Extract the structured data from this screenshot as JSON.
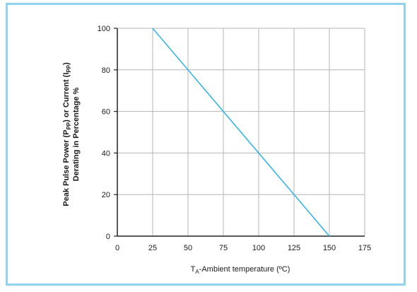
{
  "chart_data": {
    "type": "line",
    "xlabel": "TA-Ambient temperature (ºC)",
    "xlabel_parts": {
      "main": "T",
      "sub": "A",
      "rest": "-Ambient temperature (ºC)"
    },
    "ylabel_line1_parts": {
      "a": "Peak Pulse Power (P",
      "a_sub": "PP",
      "b": ") or Current (I",
      "b_sub": "PP",
      "c": ")"
    },
    "ylabel_line2": "Derating in Percentage %",
    "xlim": [
      0,
      175
    ],
    "ylim": [
      0,
      100
    ],
    "x_ticks": [
      0,
      25,
      50,
      75,
      100,
      125,
      150,
      175
    ],
    "y_ticks": [
      0,
      20,
      40,
      60,
      80,
      100
    ],
    "x_tick_labels": [
      "0",
      "25",
      "50",
      "75",
      "100",
      "125",
      "150",
      "175"
    ],
    "y_tick_labels": [
      "0",
      "20",
      "40",
      "60",
      "80",
      "100"
    ],
    "grid": true,
    "series": [
      {
        "x": [
          25,
          150
        ],
        "y": [
          100,
          0
        ],
        "color": "#35b6e3"
      }
    ]
  }
}
